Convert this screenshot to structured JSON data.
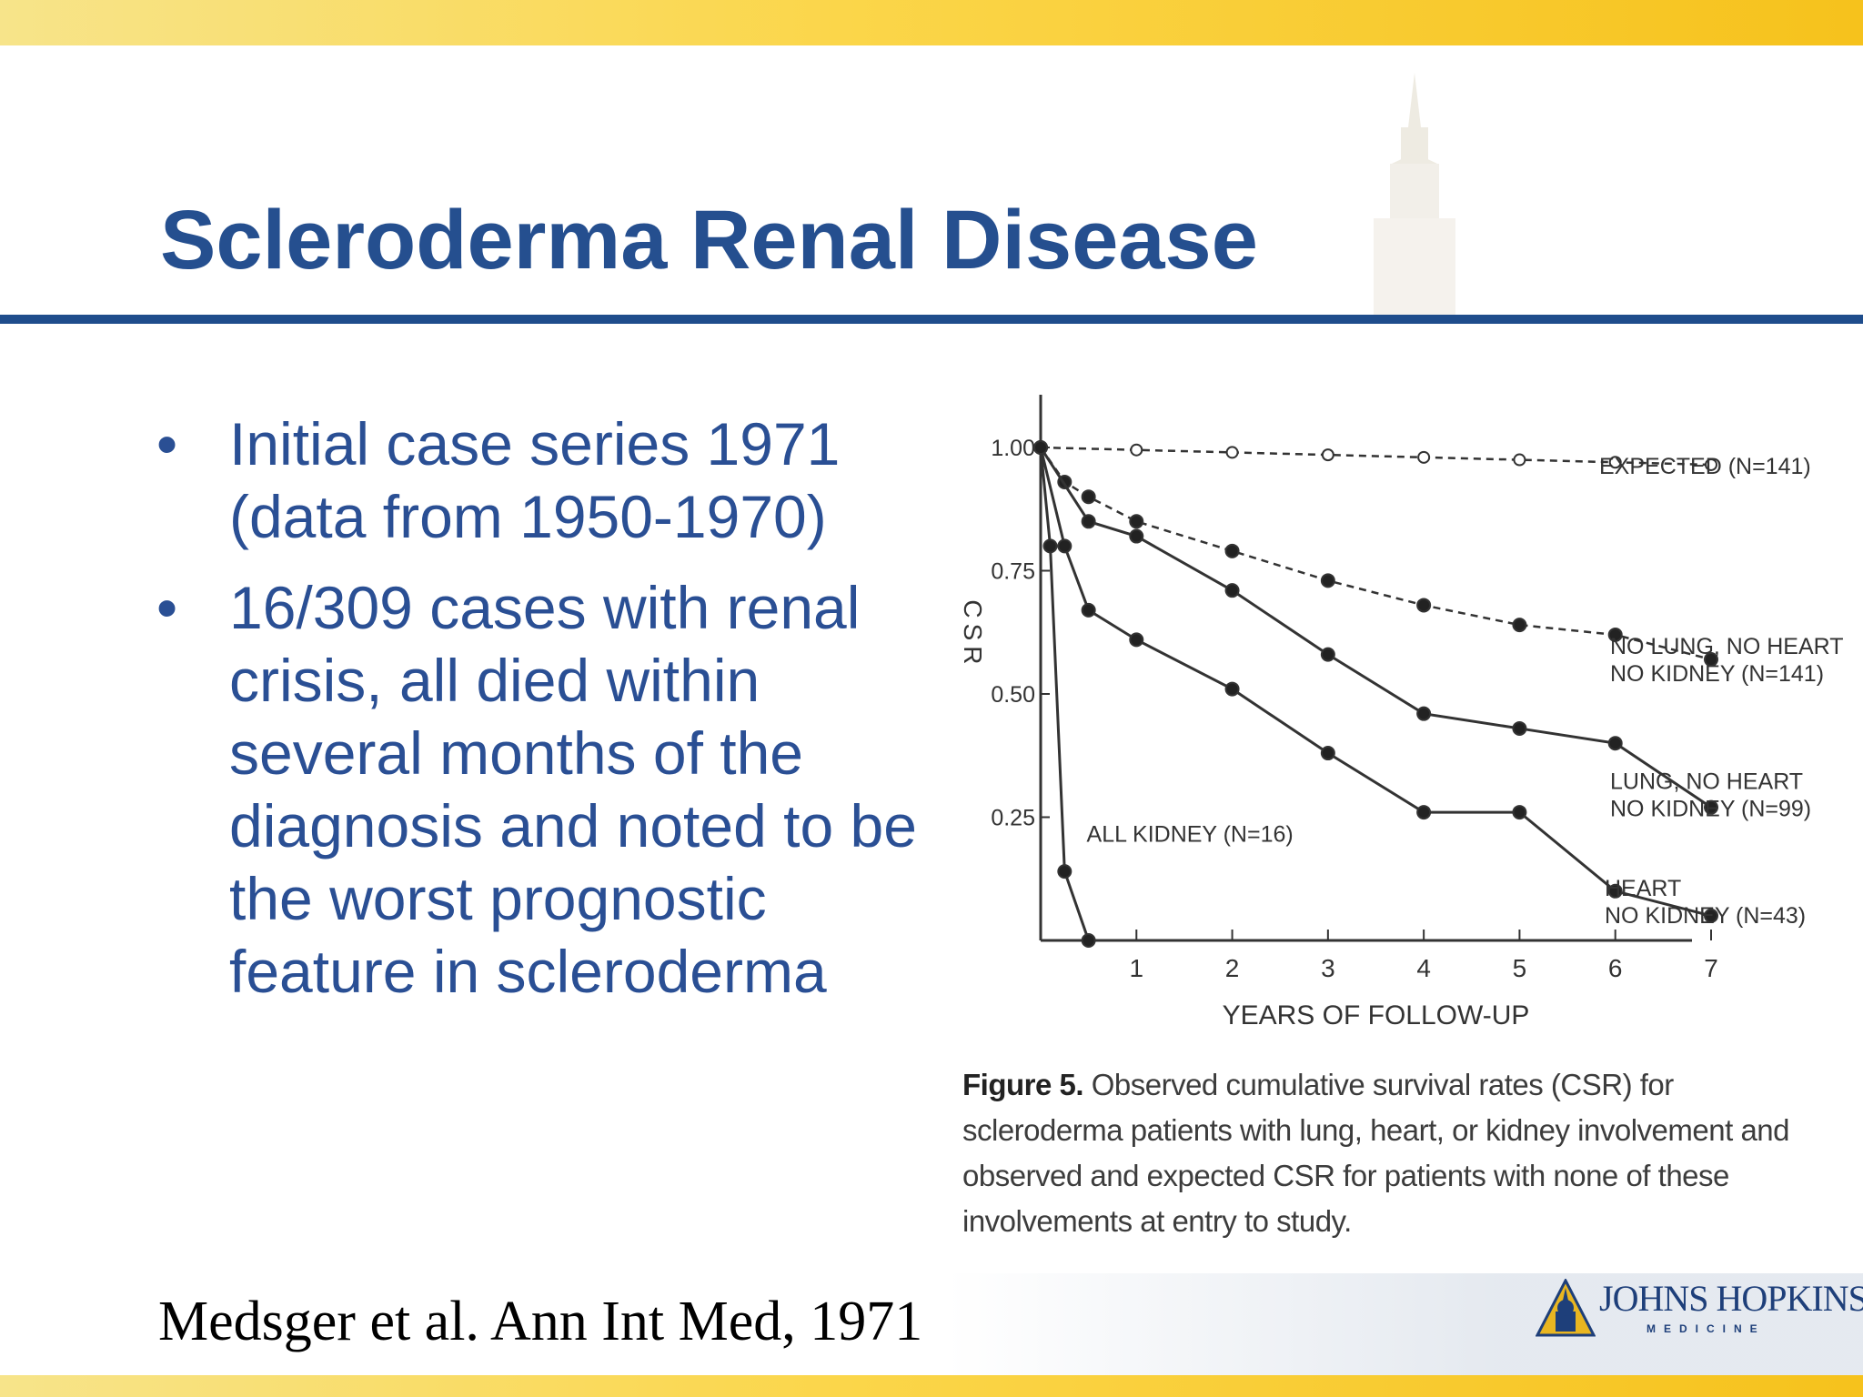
{
  "slide": {
    "title": "Scleroderma Renal Disease",
    "bullets": [
      "Initial case series 1971 (data from 1950-1970)",
      "16/309 cases with renal crisis, all died within several months of the diagnosis and noted to be the worst prognostic feature in scleroderma"
    ],
    "bullet_symbol": "•",
    "citation": "Medsger et al. Ann Int Med, 1971",
    "logo": {
      "name": "JOHNS HOPKINS",
      "sub": "MEDICINE"
    },
    "colors": {
      "title": "#254f8f",
      "rule": "#1f4d8c",
      "band": "#f6c21c",
      "text": "#2a4f94"
    }
  },
  "chart_data": {
    "type": "line",
    "xlabel": "YEARS OF FOLLOW-UP",
    "ylabel": "CSR",
    "xlim": [
      0,
      7
    ],
    "ylim": [
      0,
      1.0
    ],
    "x_ticks": [
      "1",
      "2",
      "3",
      "4",
      "5",
      "6",
      "7"
    ],
    "y_ticks": [
      "1.00",
      "0.75",
      "0.50",
      "0.25"
    ],
    "grid": false,
    "series": [
      {
        "name": "EXPECTED (N=141)",
        "style": "dashed-open",
        "x": [
          0,
          1,
          2,
          3,
          4,
          5,
          6,
          7
        ],
        "y": [
          1.0,
          0.995,
          0.99,
          0.985,
          0.98,
          0.975,
          0.97,
          0.965
        ]
      },
      {
        "name": "NO LUNG, NO HEART NO KIDNEY (N=141)",
        "style": "dashed-filled",
        "x": [
          0,
          0.25,
          0.5,
          1,
          2,
          3,
          4,
          5,
          6,
          7
        ],
        "y": [
          1.0,
          0.93,
          0.9,
          0.85,
          0.79,
          0.73,
          0.68,
          0.64,
          0.62,
          0.57
        ]
      },
      {
        "name": "LUNG, NO HEART NO KIDNEY (N=99)",
        "style": "solid-filled",
        "x": [
          0,
          0.5,
          1,
          2,
          3,
          4,
          5,
          6,
          7
        ],
        "y": [
          1.0,
          0.85,
          0.82,
          0.71,
          0.58,
          0.46,
          0.43,
          0.4,
          0.27
        ]
      },
      {
        "name": "HEART NO KIDNEY (N=43)",
        "style": "solid-filled",
        "x": [
          0,
          0.25,
          0.5,
          1,
          2,
          3,
          4,
          5,
          6,
          7
        ],
        "y": [
          1.0,
          0.8,
          0.67,
          0.61,
          0.51,
          0.38,
          0.26,
          0.26,
          0.1,
          0.05
        ]
      },
      {
        "name": "ALL KIDNEY (N=16)",
        "style": "solid-filled",
        "x": [
          0,
          0.1,
          0.25,
          0.5
        ],
        "y": [
          1.0,
          0.8,
          0.14,
          0.0
        ]
      }
    ],
    "caption_label": "Figure 5.",
    "caption": "Observed cumulative survival rates (CSR) for scleroderma patients with lung, heart, or kidney involvement and observed and expected CSR for patients with none of these involvements at entry to study."
  }
}
